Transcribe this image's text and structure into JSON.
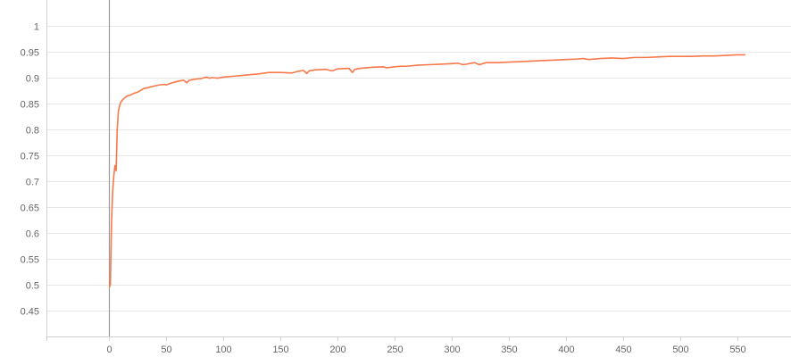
{
  "chart_data": {
    "type": "line",
    "title": "",
    "xlabel": "",
    "ylabel": "",
    "xlim": [
      -55,
      597
    ],
    "ylim": [
      0.4,
      1.05
    ],
    "grid": "horizontal",
    "x_ticks": [
      0,
      50,
      100,
      150,
      200,
      250,
      300,
      350,
      400,
      450,
      500,
      550
    ],
    "y_ticks": [
      0.45,
      0.5,
      0.55,
      0.6,
      0.65,
      0.7,
      0.75,
      0.8,
      0.85,
      0.9,
      0.95,
      1
    ],
    "x_tick_labels": [
      "0",
      "50",
      "100",
      "150",
      "200",
      "250",
      "300",
      "350",
      "400",
      "450",
      "500",
      "550"
    ],
    "y_tick_labels": [
      "0.45",
      "0.5",
      "0.55",
      "0.6",
      "0.65",
      "0.7",
      "0.75",
      "0.8",
      "0.85",
      "0.9",
      "0.95",
      "1"
    ],
    "series": [
      {
        "color": "#f7794a",
        "x": [
          0,
          1,
          2,
          3,
          4,
          5,
          6,
          7,
          8,
          9,
          10,
          12,
          14,
          16,
          18,
          20,
          22,
          25,
          28,
          30,
          33,
          36,
          40,
          44,
          48,
          50,
          55,
          60,
          65,
          68,
          70,
          75,
          80,
          85,
          88,
          90,
          95,
          100,
          105,
          110,
          115,
          120,
          130,
          140,
          150,
          160,
          165,
          170,
          173,
          175,
          180,
          190,
          195,
          200,
          210,
          213,
          215,
          220,
          230,
          240,
          243,
          250,
          255,
          260,
          270,
          280,
          290,
          300,
          305,
          310,
          320,
          324,
          330,
          340,
          350,
          360,
          370,
          380,
          390,
          400,
          410,
          415,
          420,
          430,
          440,
          450,
          460,
          470,
          480,
          490,
          500,
          510,
          520,
          530,
          540,
          550,
          557
        ],
        "y": [
          0.495,
          0.5,
          0.62,
          0.68,
          0.71,
          0.73,
          0.72,
          0.8,
          0.835,
          0.845,
          0.852,
          0.858,
          0.862,
          0.865,
          0.866,
          0.868,
          0.87,
          0.872,
          0.876,
          0.879,
          0.88,
          0.882,
          0.884,
          0.886,
          0.887,
          0.886,
          0.89,
          0.893,
          0.895,
          0.89,
          0.895,
          0.897,
          0.898,
          0.901,
          0.899,
          0.9,
          0.899,
          0.901,
          0.902,
          0.903,
          0.904,
          0.905,
          0.907,
          0.91,
          0.91,
          0.909,
          0.912,
          0.914,
          0.908,
          0.913,
          0.915,
          0.916,
          0.913,
          0.917,
          0.918,
          0.91,
          0.916,
          0.918,
          0.92,
          0.921,
          0.919,
          0.921,
          0.922,
          0.922,
          0.924,
          0.925,
          0.926,
          0.927,
          0.928,
          0.925,
          0.929,
          0.925,
          0.929,
          0.929,
          0.93,
          0.931,
          0.932,
          0.933,
          0.934,
          0.935,
          0.936,
          0.937,
          0.935,
          0.937,
          0.938,
          0.937,
          0.939,
          0.939,
          0.94,
          0.941,
          0.941,
          0.941,
          0.942,
          0.942,
          0.943,
          0.944,
          0.944
        ]
      }
    ]
  }
}
